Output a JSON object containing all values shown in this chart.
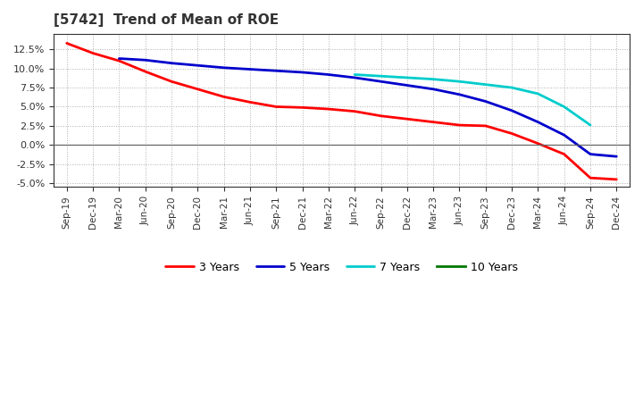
{
  "title": "[5742]  Trend of Mean of ROE",
  "x_labels": [
    "Sep-19",
    "Dec-19",
    "Mar-20",
    "Jun-20",
    "Sep-20",
    "Dec-20",
    "Mar-21",
    "Jun-21",
    "Sep-21",
    "Dec-21",
    "Mar-22",
    "Jun-22",
    "Sep-22",
    "Dec-22",
    "Mar-23",
    "Jun-23",
    "Sep-23",
    "Dec-23",
    "Mar-24",
    "Jun-24",
    "Sep-24",
    "Dec-24"
  ],
  "series_3y": [
    0.133,
    0.12,
    0.11,
    0.096,
    0.083,
    0.073,
    0.063,
    0.056,
    0.05,
    0.049,
    0.047,
    0.044,
    0.038,
    0.034,
    0.03,
    0.026,
    0.025,
    0.015,
    0.002,
    -0.012,
    -0.043,
    -0.045
  ],
  "series_5y": [
    null,
    null,
    0.113,
    0.111,
    0.107,
    0.104,
    0.101,
    0.099,
    0.097,
    0.095,
    0.092,
    0.088,
    0.083,
    0.078,
    0.073,
    0.066,
    0.057,
    0.045,
    0.03,
    0.013,
    -0.012,
    -0.015
  ],
  "series_7y": [
    null,
    null,
    null,
    null,
    null,
    null,
    null,
    null,
    null,
    null,
    null,
    0.092,
    0.09,
    0.088,
    0.086,
    0.083,
    0.079,
    0.075,
    0.067,
    0.05,
    0.026,
    null
  ],
  "series_10y": [
    null,
    null,
    null,
    null,
    null,
    null,
    null,
    null,
    null,
    null,
    null,
    null,
    null,
    null,
    null,
    null,
    null,
    null,
    null,
    null,
    null,
    null
  ],
  "color_3y": "#ff0000",
  "color_5y": "#0000cc",
  "color_7y": "#00cccc",
  "color_10y": "#007700",
  "ylim": [
    -0.055,
    0.145
  ],
  "yticks": [
    -0.05,
    -0.025,
    0.0,
    0.025,
    0.05,
    0.075,
    0.1,
    0.125
  ],
  "background_color": "#ffffff",
  "grid_color": "#b0b0b0"
}
